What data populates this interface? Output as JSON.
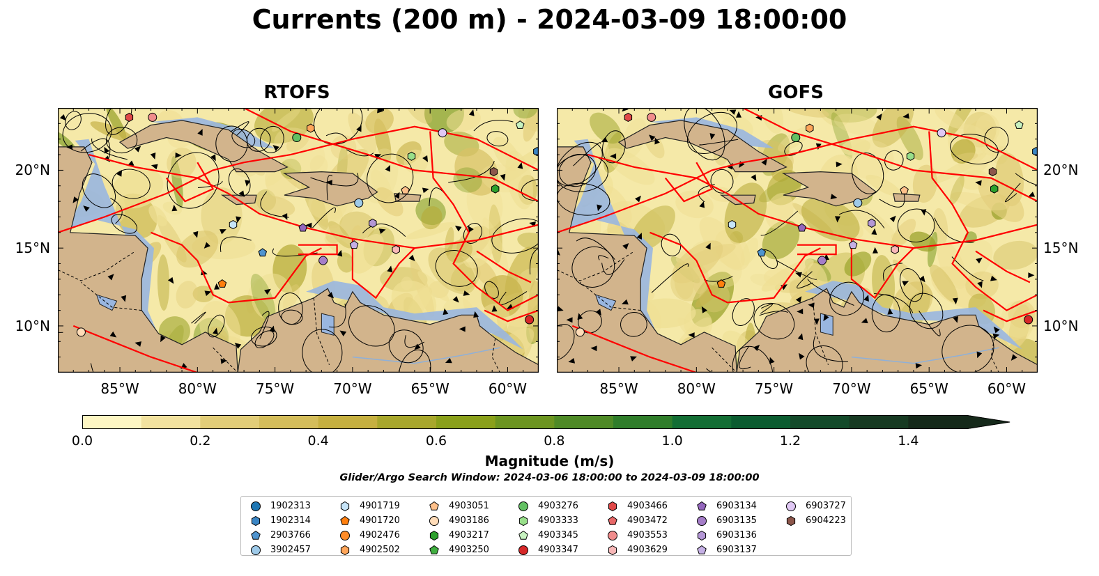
{
  "title": "Currents (200 m) - 2024-03-09 18:00:00",
  "panels": [
    {
      "title": "RTOFS"
    },
    {
      "title": "GOFS"
    }
  ],
  "axes": {
    "x_ticks": [
      "85°W",
      "80°W",
      "75°W",
      "70°W",
      "65°W",
      "60°W"
    ],
    "y_ticks": [
      "20°N",
      "15°N",
      "10°N"
    ],
    "lon_range": [
      -89,
      -58
    ],
    "lat_range": [
      7,
      24
    ]
  },
  "colorbar": {
    "label": "Magnitude (m/s)",
    "ticks": [
      "0.0",
      "0.2",
      "0.4",
      "0.6",
      "0.8",
      "1.0",
      "1.2",
      "1.4"
    ],
    "range": [
      0.0,
      1.5
    ],
    "extend": "max",
    "colors": [
      "#fdf6c3",
      "#f2e29f",
      "#e2cd78",
      "#d4bd5a",
      "#c6b040",
      "#a8a72c",
      "#8aa01a",
      "#6c9520",
      "#4e8a26",
      "#2f7d2a",
      "#136e34",
      "#0b5c30",
      "#134a2a",
      "#173a22",
      "#15291a"
    ]
  },
  "search_window": "Glider/Argo Search Window: 2024-03-06 18:00:00 to 2024-03-09 18:00:00",
  "colors": {
    "land": "#d2b48c",
    "water": "#99b6e0",
    "eez": "#ff0000",
    "streamline": "#000000"
  },
  "legend": [
    {
      "id": "1902313",
      "shape": "circle",
      "color": "#1f77b4"
    },
    {
      "id": "1902314",
      "shape": "hexagon",
      "color": "#3a85c4"
    },
    {
      "id": "2903766",
      "shape": "pentagon",
      "color": "#4f94cf"
    },
    {
      "id": "3902457",
      "shape": "circle",
      "color": "#9ecae9"
    },
    {
      "id": "4901719",
      "shape": "hexagon",
      "color": "#c6e4f8"
    },
    {
      "id": "4901720",
      "shape": "pentagon",
      "color": "#ff7f0e"
    },
    {
      "id": "4902476",
      "shape": "circle",
      "color": "#ff8c28"
    },
    {
      "id": "4902502",
      "shape": "hexagon",
      "color": "#ffa65a"
    },
    {
      "id": "4903051",
      "shape": "pentagon",
      "color": "#ffc08a"
    },
    {
      "id": "4903186",
      "shape": "circle",
      "color": "#ffdcb8"
    },
    {
      "id": "4903217",
      "shape": "hexagon",
      "color": "#2ca02c"
    },
    {
      "id": "4903250",
      "shape": "pentagon",
      "color": "#40ae40"
    },
    {
      "id": "4903276",
      "shape": "circle",
      "color": "#63c063"
    },
    {
      "id": "4903333",
      "shape": "hexagon",
      "color": "#98df8a"
    },
    {
      "id": "4903345",
      "shape": "pentagon",
      "color": "#c7f2c0"
    },
    {
      "id": "4903347",
      "shape": "circle",
      "color": "#d62728"
    },
    {
      "id": "4903466",
      "shape": "hexagon",
      "color": "#e04848"
    },
    {
      "id": "4903472",
      "shape": "pentagon",
      "color": "#e86868"
    },
    {
      "id": "4903553",
      "shape": "circle",
      "color": "#f08c8c"
    },
    {
      "id": "4903629",
      "shape": "hexagon",
      "color": "#f8b8b8"
    },
    {
      "id": "6903134",
      "shape": "pentagon",
      "color": "#9467bd"
    },
    {
      "id": "6903135",
      "shape": "circle",
      "color": "#a57dc8"
    },
    {
      "id": "6903136",
      "shape": "hexagon",
      "color": "#b497d6"
    },
    {
      "id": "6903137",
      "shape": "pentagon",
      "color": "#c5b0e5"
    },
    {
      "id": "6903727",
      "shape": "circle",
      "color": "#e0c8f4"
    },
    {
      "id": "6904223",
      "shape": "hexagon",
      "color": "#8c564b"
    }
  ],
  "floats": [
    {
      "id": "4903466",
      "lon": -84.4,
      "lat": 23.4
    },
    {
      "id": "4903553",
      "lon": -82.9,
      "lat": 23.4
    },
    {
      "id": "4902502",
      "lon": -72.7,
      "lat": 22.7
    },
    {
      "id": "4903276",
      "lon": -73.6,
      "lat": 22.1
    },
    {
      "id": "6903727",
      "lon": -64.2,
      "lat": 22.4
    },
    {
      "id": "4903345",
      "lon": -59.2,
      "lat": 22.9
    },
    {
      "id": "4903333",
      "lon": -66.2,
      "lat": 20.9
    },
    {
      "id": "6904223",
      "lon": -60.9,
      "lat": 19.9
    },
    {
      "id": "4903051",
      "lon": -66.6,
      "lat": 18.7
    },
    {
      "id": "4903217",
      "lon": -60.8,
      "lat": 18.8
    },
    {
      "id": "3902457",
      "lon": -69.6,
      "lat": 17.9
    },
    {
      "id": "4901719",
      "lon": -77.7,
      "lat": 16.5
    },
    {
      "id": "6903134",
      "lon": -73.2,
      "lat": 16.3
    },
    {
      "id": "6903136",
      "lon": -68.7,
      "lat": 16.6
    },
    {
      "id": "6903137",
      "lon": -69.9,
      "lat": 15.2
    },
    {
      "id": "4903629",
      "lon": -67.2,
      "lat": 14.9
    },
    {
      "id": "2903766",
      "lon": -75.8,
      "lat": 14.7
    },
    {
      "id": "6903135",
      "lon": -71.9,
      "lat": 14.2
    },
    {
      "id": "4901720",
      "lon": -78.4,
      "lat": 12.7
    },
    {
      "id": "4903186",
      "lon": -87.5,
      "lat": 9.6
    },
    {
      "id": "4903347",
      "lon": -58.6,
      "lat": 10.4
    },
    {
      "id": "1902314",
      "lon": -58.1,
      "lat": 21.2
    }
  ]
}
